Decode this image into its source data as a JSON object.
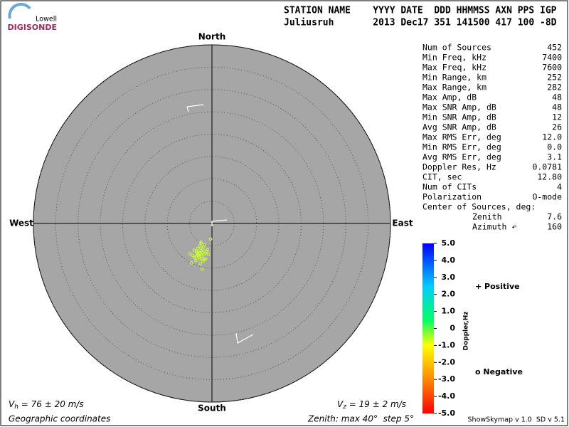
{
  "logo": {
    "top": "Lowell",
    "bottom": "DIGISONDE"
  },
  "header": {
    "columns": "STATION NAME    YYYY DATE  DDD HHMMSS AXN PPS IGP",
    "values": "Juliusruh       2013 Dec17 351 141500 417 100 -8D"
  },
  "stats": {
    "rows": [
      [
        "Num of Sources",
        "452"
      ],
      [
        "Min Freq, kHz",
        "7400"
      ],
      [
        "Max Freq, kHz",
        "7600"
      ],
      [
        "Min Range, km",
        "252"
      ],
      [
        "Max Range, km",
        "282"
      ],
      [
        "Max Amp, dB",
        "48"
      ],
      [
        "Max SNR Amp, dB",
        "48"
      ],
      [
        "Min SNR Amp, dB",
        "12"
      ],
      [
        "Avg SNR Amp, dB",
        "26"
      ],
      [
        "Max RMS Err, deg",
        "12.0"
      ],
      [
        "Min RMS Err, deg",
        "0.0"
      ],
      [
        "Avg RMS Err, deg",
        "3.1"
      ],
      [
        "Doppler Res, Hz",
        "0.0781"
      ],
      [
        "CIT, sec",
        "12.80"
      ],
      [
        "Num of CITs",
        "4"
      ],
      [
        "Polarization",
        "O-mode"
      ],
      [
        "Center of Sources, deg:"
      ],
      [
        "Zenith",
        "7.6"
      ],
      [
        "Azimuth ↶",
        "160"
      ]
    ]
  },
  "footer": {
    "vh": {
      "symbol": "V",
      "sub": "h",
      "text": " = 76 ± 20 m/s"
    },
    "vz": {
      "symbol": "V",
      "sub": "z",
      "text": " = 19 ± 2 m/s"
    },
    "coords": "Geographic coordinates",
    "zenith": "Zenith: max 40°  step 5°",
    "version": "ShowSkymap v 1.0  SD v 5.1"
  },
  "chart_data": {
    "type": "skymap",
    "directions": {
      "north": "North",
      "south": "South",
      "west": "West",
      "east": "East"
    },
    "rlim": [
      0,
      40
    ],
    "rticks": [
      5,
      10,
      15,
      20,
      25,
      30,
      35,
      40
    ],
    "color": "#ccff33",
    "x": [
      -2.6,
      -3.1,
      -2.2,
      -1.8,
      -3.5,
      -2.9,
      -2.4,
      -1.5,
      -3.9,
      -2.0,
      -2.7,
      -3.3,
      -1.2,
      -4.4,
      -2.5,
      -2.1,
      -3.0,
      -1.9,
      -2.8,
      -3.6,
      -1.0,
      -2.3,
      -4.0,
      -2.6,
      -1.6,
      -3.2,
      -2.9,
      -0.3,
      -4.6,
      -2.4,
      -1.4,
      -3.4,
      -2.0,
      -2.7,
      -3.8,
      -0.8,
      -2.2,
      -4.9,
      -2.5,
      -1.7
    ],
    "values": [
      -6.8,
      -7.2,
      -6.5,
      -7.0,
      -6.3,
      -7.6,
      -6.1,
      -6.6,
      -7.4,
      -5.8,
      -8.0,
      -6.9,
      -6.2,
      -7.1,
      -5.5,
      -7.8,
      -6.4,
      -5.2,
      -6.7,
      -8.3,
      -5.9,
      -7.3,
      -6.0,
      -9.0,
      -4.8,
      -5.6,
      -7.5,
      -3.5,
      -8.8,
      -4.4,
      -7.9,
      -6.6,
      -8.4,
      -5.0,
      -7.7,
      -6.9,
      -10.3,
      -6.8,
      -4.2,
      -8.1
    ],
    "colorbar": {
      "label": "Doppler,Hz",
      "ylim": [
        -5,
        5
      ],
      "yticks": [
        {
          "value": 5,
          "label": "5.0"
        },
        {
          "value": 4,
          "label": "4.0"
        },
        {
          "value": 3,
          "label": "3.0"
        },
        {
          "value": 2,
          "label": "2.0"
        },
        {
          "value": 1,
          "label": "1.0"
        },
        0,
        {
          "value": -1,
          "label": "-1.0"
        },
        {
          "value": -2,
          "label": "-2.0"
        },
        {
          "value": -3,
          "label": "-3.0"
        },
        {
          "value": -4,
          "label": "-4.0"
        },
        {
          "value": -5,
          "label": "-5.0"
        }
      ]
    },
    "legend": {
      "positive": "+ Positive",
      "negative": "o Negative",
      "positive_color": "#0000cc",
      "negative_color": "#cc0000"
    }
  }
}
